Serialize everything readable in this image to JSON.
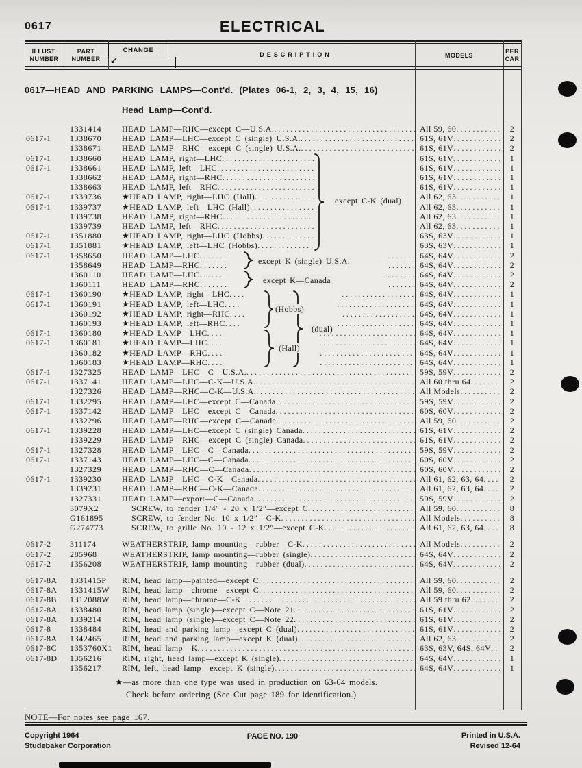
{
  "page": {
    "code": "0617",
    "title": "ELECTRICAL",
    "section_title": "0617—HEAD AND PARKING LAMPS—Cont'd. (Plates 06-1, 2, 3, 4, 15, 16)",
    "subsection_title": "Head Lamp—Cont'd.",
    "note": "NOTE—For notes see page 167.",
    "footnote_line1": "★—as more than one type was used in production on 63-64 models.",
    "footnote_line2": "Check before ordering (See Cut page 189 for identification.)",
    "footer": {
      "left_line1": "Copyright 1964",
      "left_line2": "Studebaker Corporation",
      "center": "PAGE NO. 190",
      "right_line1": "Printed in U.S.A.",
      "right_line2": "Revised 12-64"
    }
  },
  "table": {
    "headers": {
      "illust": "ILLUST. NUMBER",
      "part": "PART NUMBER",
      "change": "CHANGE",
      "change_icon": "↙",
      "description": "DESCRIPTION",
      "models": "MODELS",
      "per_car": "PER CAR"
    },
    "braces": {
      "ck": "except C-K (dual)",
      "k_single": "except K (single) U.S.A.",
      "k_canada": "except K—Canada",
      "hobbs": "(Hobbs)",
      "hall": "(Hall)",
      "dual": "(dual)"
    },
    "rows": [
      {
        "illust": "",
        "part": "1331414",
        "desc": "HEAD LAMP—RHC—except C—U.S.A.",
        "models": "All 59, 60",
        "per": "2",
        "group": null,
        "indent": false,
        "gap_before": false
      },
      {
        "illust": "0617-1",
        "part": "1338670",
        "desc": "HEAD LAMP—LHC—except C (single) U.S.A.",
        "models": "61S, 61V",
        "per": "2",
        "group": null,
        "indent": false,
        "gap_before": false
      },
      {
        "illust": "",
        "part": "1338671",
        "desc": "HEAD LAMP—RHC—except C (single) U.S.A.",
        "models": "61S, 61V",
        "per": "2",
        "group": null,
        "indent": false,
        "gap_before": false
      },
      {
        "illust": "0617-1",
        "part": "1338660",
        "desc": "HEAD LAMP, right—LHC",
        "models": "61S, 61V",
        "per": "1",
        "group": "ck",
        "indent": false,
        "gap_before": false
      },
      {
        "illust": "0617-1",
        "part": "1338661",
        "desc": "HEAD LAMP, left—LHC",
        "models": "61S, 61V",
        "per": "1",
        "group": "ck",
        "indent": false,
        "gap_before": false
      },
      {
        "illust": "",
        "part": "1338662",
        "desc": "HEAD LAMP, right—RHC",
        "models": "61S, 61V",
        "per": "1",
        "group": "ck",
        "indent": false,
        "gap_before": false
      },
      {
        "illust": "",
        "part": "1338663",
        "desc": "HEAD LAMP, left—RHC",
        "models": "61S, 61V",
        "per": "1",
        "group": "ck",
        "indent": false,
        "gap_before": false
      },
      {
        "illust": "0617-1",
        "part": "1339736",
        "desc": "★HEAD LAMP, right—LHC (Hall)",
        "models": "All 62, 63",
        "per": "1",
        "group": "ck",
        "indent": false,
        "gap_before": false
      },
      {
        "illust": "0617-1",
        "part": "1339737",
        "desc": "★HEAD LAMP, left—LHC (Hall)",
        "models": "All 62, 63",
        "per": "1",
        "group": "ck",
        "indent": false,
        "gap_before": false
      },
      {
        "illust": "",
        "part": "1339738",
        "desc": "HEAD LAMP, right—RHC",
        "models": "All 62, 63",
        "per": "1",
        "group": "ck",
        "indent": false,
        "gap_before": false
      },
      {
        "illust": "",
        "part": "1339739",
        "desc": "HEAD LAMP, left—RHC",
        "models": "All 62, 63",
        "per": "1",
        "group": "ck",
        "indent": false,
        "gap_before": false
      },
      {
        "illust": "0617-1",
        "part": "1351880",
        "desc": "★HEAD LAMP, right—LHC (Hobbs)",
        "models": "63S, 63V",
        "per": "1",
        "group": "ck",
        "indent": false,
        "gap_before": false
      },
      {
        "illust": "0617-1",
        "part": "1351881",
        "desc": "★HEAD LAMP, left—LHC (Hobbs)",
        "models": "63S, 63V",
        "per": "1",
        "group": "ck",
        "indent": false,
        "gap_before": false
      },
      {
        "illust": "0617-1",
        "part": "1358650",
        "desc": "HEAD LAMP—LHC",
        "models": "64S, 64V",
        "per": "2",
        "group": "k",
        "indent": false,
        "gap_before": false
      },
      {
        "illust": "",
        "part": "1358649",
        "desc": "HEAD LAMP—RHC",
        "models": "64S, 64V",
        "per": "2",
        "group": "k",
        "indent": false,
        "gap_before": false
      },
      {
        "illust": "",
        "part": "1360110",
        "desc": "HEAD LAMP—LHC",
        "models": "64S, 64V",
        "per": "2",
        "group": "k",
        "indent": false,
        "gap_before": false
      },
      {
        "illust": "",
        "part": "1360111",
        "desc": "HEAD LAMP—RHC",
        "models": "64S, 64V",
        "per": "2",
        "group": "k",
        "indent": false,
        "gap_before": false
      },
      {
        "illust": "0617-1",
        "part": "1360190",
        "desc": "★HEAD LAMP, right—LHC",
        "models": "64S, 64V",
        "per": "1",
        "group": "h",
        "indent": false,
        "gap_before": false
      },
      {
        "illust": "0617-1",
        "part": "1360191",
        "desc": "★HEAD LAMP, left—LHC",
        "models": "64S, 64V",
        "per": "1",
        "group": "h",
        "indent": false,
        "gap_before": false
      },
      {
        "illust": "",
        "part": "1360192",
        "desc": "★HEAD LAMP, right—RHC",
        "models": "64S, 64V",
        "per": "1",
        "group": "h",
        "indent": false,
        "gap_before": false
      },
      {
        "illust": "",
        "part": "1360193",
        "desc": "★HEAD LAMP, left—RHC",
        "models": "64S, 64V",
        "per": "1",
        "group": "h",
        "indent": false,
        "gap_before": false
      },
      {
        "illust": "0617-1",
        "part": "1360180",
        "desc": "★HEAD LAMP—LHC",
        "models": "64S, 64V",
        "per": "1",
        "group": "h",
        "indent": false,
        "gap_before": false
      },
      {
        "illust": "0617-1",
        "part": "1360181",
        "desc": "★HEAD LAMP—LHC",
        "models": "64S, 64V",
        "per": "1",
        "group": "h",
        "indent": false,
        "gap_before": false
      },
      {
        "illust": "",
        "part": "1360182",
        "desc": "★HEAD LAMP—RHC",
        "models": "64S, 64V",
        "per": "1",
        "group": "h",
        "indent": false,
        "gap_before": false
      },
      {
        "illust": "",
        "part": "1360183",
        "desc": "★HEAD LAMP—RHC",
        "models": "64S, 64V",
        "per": "1",
        "group": "h",
        "indent": false,
        "gap_before": false
      },
      {
        "illust": "0617-1",
        "part": "1327325",
        "desc": "HEAD LAMP—LHC—C—U.S.A.",
        "models": "59S, 59V",
        "per": "2",
        "group": null,
        "indent": false,
        "gap_before": false
      },
      {
        "illust": "0617-1",
        "part": "1337141",
        "desc": "HEAD LAMP—LHC—C-K—U.S.A.",
        "models": "All 60 thru 64",
        "per": "2",
        "group": null,
        "indent": false,
        "gap_before": false
      },
      {
        "illust": "",
        "part": "1327326",
        "desc": "HEAD LAMP—RHC—C-K—U.S.A.",
        "models": "All Models",
        "per": "2",
        "group": null,
        "indent": false,
        "gap_before": false
      },
      {
        "illust": "0617-1",
        "part": "1332295",
        "desc": "HEAD LAMP—LHC—except C—Canada",
        "models": "59S, 59V",
        "per": "2",
        "group": null,
        "indent": false,
        "gap_before": false
      },
      {
        "illust": "0617-1",
        "part": "1337142",
        "desc": "HEAD LAMP—LHC—except C—Canada",
        "models": "60S, 60V",
        "per": "2",
        "group": null,
        "indent": false,
        "gap_before": false
      },
      {
        "illust": "",
        "part": "1332296",
        "desc": "HEAD LAMP—RHC—except C—Canada",
        "models": "All 59, 60",
        "per": "2",
        "group": null,
        "indent": false,
        "gap_before": false
      },
      {
        "illust": "0617-1",
        "part": "1339228",
        "desc": "HEAD LAMP—LHC—except C (single) Canada",
        "models": "61S, 61V",
        "per": "2",
        "group": null,
        "indent": false,
        "gap_before": false
      },
      {
        "illust": "",
        "part": "1339229",
        "desc": "HEAD LAMP—RHC—except C (single) Canada",
        "models": "61S, 61V",
        "per": "2",
        "group": null,
        "indent": false,
        "gap_before": false
      },
      {
        "illust": "0617-1",
        "part": "1327328",
        "desc": "HEAD LAMP—LHC—C—Canada",
        "models": "59S, 59V",
        "per": "2",
        "group": null,
        "indent": false,
        "gap_before": false
      },
      {
        "illust": "0617-1",
        "part": "1337143",
        "desc": "HEAD LAMP—LHC—C—Canada",
        "models": "60S, 60V",
        "per": "2",
        "group": null,
        "indent": false,
        "gap_before": false
      },
      {
        "illust": "",
        "part": "1327329",
        "desc": "HEAD LAMP—RHC—C—Canada",
        "models": "60S, 60V",
        "per": "2",
        "group": null,
        "indent": false,
        "gap_before": false
      },
      {
        "illust": "0617-1",
        "part": "1339230",
        "desc": "HEAD LAMP—LHC—C-K—Canada",
        "models": "All 61, 62, 63, 64",
        "per": "2",
        "group": null,
        "indent": false,
        "gap_before": false
      },
      {
        "illust": "",
        "part": "1339231",
        "desc": "HEAD LAMP—RHC—C-K—Canada",
        "models": "All 61, 62, 63, 64",
        "per": "2",
        "group": null,
        "indent": false,
        "gap_before": false
      },
      {
        "illust": "",
        "part": "1327331",
        "desc": "HEAD LAMP—export—C—Canada",
        "models": "59S, 59V",
        "per": "2",
        "group": null,
        "indent": false,
        "gap_before": false
      },
      {
        "illust": "",
        "part": "3079X2",
        "desc": "SCREW, to fender 1/4″ - 20 x 1/2″—except C",
        "models": "All 59, 60",
        "per": "8",
        "group": null,
        "indent": true,
        "gap_before": false
      },
      {
        "illust": "",
        "part": "G161895",
        "desc": "SCREW, to fender No. 10 x 1/2″—C-K",
        "models": "All Models",
        "per": "8",
        "group": null,
        "indent": true,
        "gap_before": false
      },
      {
        "illust": "",
        "part": "G274773",
        "desc": "SCREW, to grille No. 10 - 12 x 1/2″—except C-K",
        "models": "All 61, 62, 63, 64",
        "per": "8",
        "group": null,
        "indent": true,
        "gap_before": false
      },
      {
        "illust": "0617-2",
        "part": "311174",
        "desc": "WEATHERSTRIP, lamp mounting—rubber—C-K",
        "models": "All Models",
        "per": "2",
        "group": null,
        "indent": false,
        "gap_before": true
      },
      {
        "illust": "0617-2",
        "part": "285968",
        "desc": "WEATHERSTRIP, lamp mounting—rubber (single)",
        "models": "64S, 64V",
        "per": "2",
        "group": null,
        "indent": false,
        "gap_before": false
      },
      {
        "illust": "0617-2",
        "part": "1356208",
        "desc": "WEATHERSTRIP, lamp mounting—rubber (dual)",
        "models": "64S, 64V",
        "per": "2",
        "group": null,
        "indent": false,
        "gap_before": false
      },
      {
        "illust": "0617-8A",
        "part": "1331415P",
        "desc": "RIM, head lamp—painted—except C",
        "models": "All 59, 60",
        "per": "2",
        "group": null,
        "indent": false,
        "gap_before": true
      },
      {
        "illust": "0617-8A",
        "part": "1331415W",
        "desc": "RIM, head lamp—chrome—except C",
        "models": "All 59, 60",
        "per": "2",
        "group": null,
        "indent": false,
        "gap_before": false
      },
      {
        "illust": "0617-8B",
        "part": "1312088W",
        "desc": "RIM, head lamp—chrome—C-K",
        "models": "All 59 thru 62",
        "per": "2",
        "group": null,
        "indent": false,
        "gap_before": false
      },
      {
        "illust": "0617-8A",
        "part": "1338480",
        "desc": "RIM, head lamp (single)—except C—Note 21",
        "models": "61S, 61V",
        "per": "2",
        "group": null,
        "indent": false,
        "gap_before": false
      },
      {
        "illust": "0617-8A",
        "part": "1339214",
        "desc": "RIM, head lamp (single)—except C—Note 22",
        "models": "61S, 61V",
        "per": "2",
        "group": null,
        "indent": false,
        "gap_before": false
      },
      {
        "illust": "0617-8",
        "part": "1338484",
        "desc": "RIM, head and parking lamp—except C (dual)",
        "models": "61S, 61V",
        "per": "2",
        "group": null,
        "indent": false,
        "gap_before": false
      },
      {
        "illust": "0617-8A",
        "part": "1342465",
        "desc": "RIM, head and parking lamp—except K (dual)",
        "models": "All 62, 63",
        "per": "2",
        "group": null,
        "indent": false,
        "gap_before": false
      },
      {
        "illust": "0617-8C",
        "part": "1353760X1",
        "desc": "RIM, head lamp—K",
        "models": "63S, 63V, 64S, 64V",
        "per": "2",
        "group": null,
        "indent": false,
        "gap_before": false
      },
      {
        "illust": "0617-8D",
        "part": "1356216",
        "desc": "RIM, right, head lamp—except K (single)",
        "models": "64S, 64V",
        "per": "1",
        "group": null,
        "indent": false,
        "gap_before": false
      },
      {
        "illust": "",
        "part": "1356217",
        "desc": "RIM, left, head lamp—except K (single)",
        "models": "64S, 64V",
        "per": "1",
        "group": null,
        "indent": false,
        "gap_before": false
      }
    ]
  }
}
